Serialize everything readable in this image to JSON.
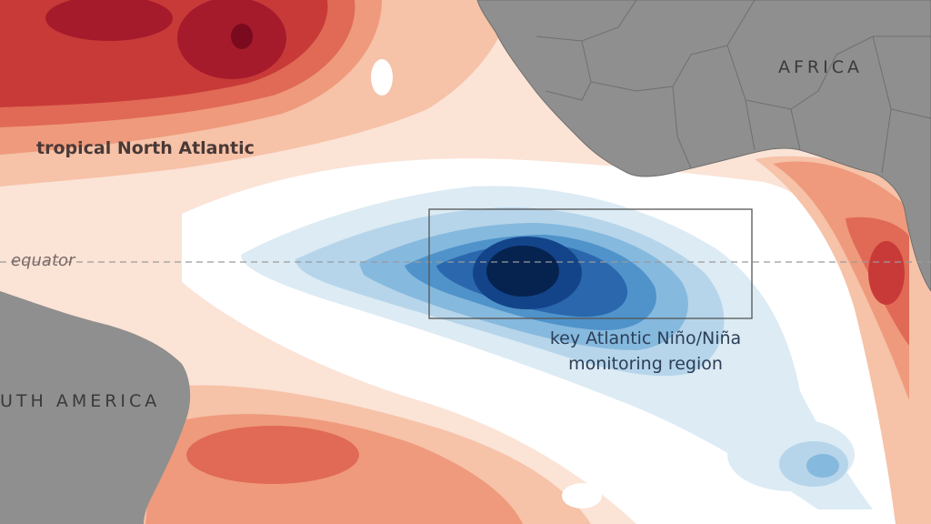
{
  "map": {
    "labels": {
      "tropical_north_atlantic": "tropical North Atlantic",
      "africa": "AFRICA",
      "south_america": "UTH AMERICA",
      "equator": "equator",
      "monitoring_region_line1": "key Atlantic Niño/Niña",
      "monitoring_region_line2": "monitoring region"
    },
    "colors": {
      "land": "#8f8f8f",
      "land_border": "#6f6f6f",
      "neutral_water": "#ffffff",
      "warm_1": "#fbe3d6",
      "warm_2": "#f6c2a8",
      "warm_3": "#ef9a7c",
      "warm_4": "#e06a55",
      "warm_5": "#c83a38",
      "warm_6": "#a51b2c",
      "warm_7": "#7a0a1e",
      "cool_1": "#dcebf4",
      "cool_2": "#b6d5ea",
      "cool_3": "#86b9de",
      "cool_4": "#4f93ca",
      "cool_5": "#2a67ad",
      "cool_6": "#13448a",
      "cool_7": "#06224f",
      "equator_line": "#9a9a9a",
      "monitoring_box": "#555555"
    }
  }
}
